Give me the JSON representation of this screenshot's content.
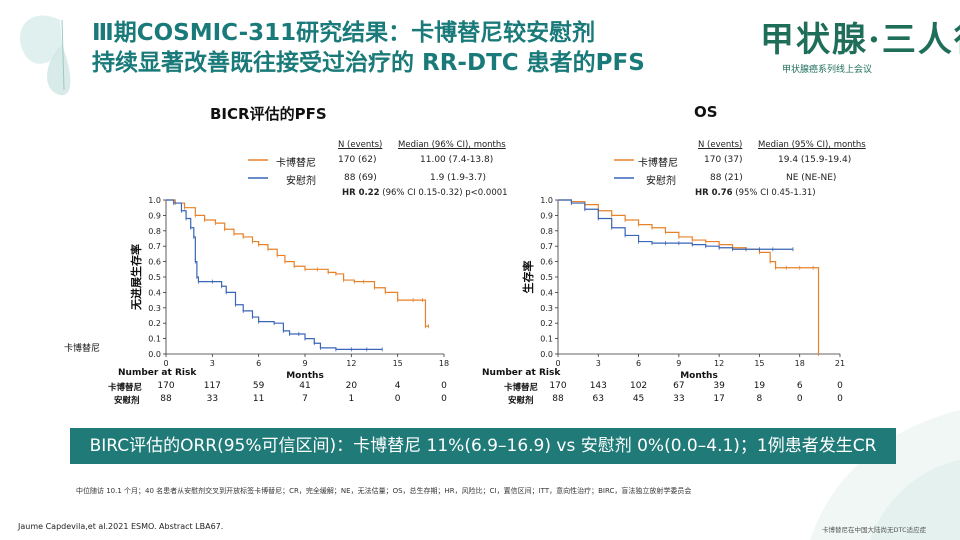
{
  "header": {
    "title_line1": "Ⅲ期COSMIC-311研究结果：卡博替尼较安慰剂",
    "title_line2": "持续显著改善既往接受过治疗的 RR-DTC 患者的PFS"
  },
  "logo": {
    "text": "甲状腺·三人行",
    "subtitle": "甲状腺癌系列线上会议"
  },
  "colors": {
    "cabozantinib": "#e8822a",
    "placebo": "#3a66b8",
    "banner": "#1f7a78",
    "title": "#1a7a7a"
  },
  "left_panel": {
    "side_label": "卡博替尼",
    "legend": {
      "col1": "N (events)",
      "col2": "Median (96% CI), months",
      "rows": [
        {
          "name": "卡博替尼",
          "n": "170 (62)",
          "median": "11.00 (7.4-13.8)"
        },
        {
          "name": "安慰剂",
          "n": "88 (69)",
          "median": "1.9 (1.9-3.7)"
        }
      ],
      "hr_bold": "HR 0.22",
      "hr_rest": " (96% CI 0.15-0.32) p<0.0001"
    },
    "risk": {
      "title": "Number at Risk",
      "rows": [
        {
          "label": "卡博替尼",
          "values": [
            "170",
            "117",
            "59",
            "41",
            "20",
            "4",
            "0"
          ]
        },
        {
          "label": "安慰剂",
          "values": [
            "88",
            "33",
            "11",
            "7",
            "1",
            "0",
            "0"
          ]
        }
      ]
    }
  },
  "right_panel": {
    "legend": {
      "col1": "N (events)",
      "col2": "Median (95% CI), months",
      "rows": [
        {
          "name": "卡博替尼",
          "n": "170 (37)",
          "median": "19.4 (15.9-19.4)"
        },
        {
          "name": "安慰剂",
          "n": "88 (21)",
          "median": "NE (NE-NE)"
        }
      ],
      "hr_bold": "HR 0.76",
      "hr_rest": " (95% CI 0.45-1.31)"
    },
    "risk": {
      "title": "Number at Risk",
      "rows": [
        {
          "label": "卡博替尼",
          "values": [
            "170",
            "143",
            "102",
            "67",
            "39",
            "19",
            "6",
            "0"
          ]
        },
        {
          "label": "安慰剂",
          "values": [
            "88",
            "63",
            "45",
            "33",
            "17",
            "8",
            "0",
            "0"
          ]
        }
      ]
    }
  },
  "chart_data": [
    {
      "type": "line",
      "title": "BICR评估的PFS",
      "xlabel": "Months",
      "ylabel": "无进展生存率",
      "xlim": [
        0,
        18
      ],
      "ylim": [
        0,
        1.0
      ],
      "xticks": [
        0,
        3,
        6,
        9,
        12,
        15,
        18
      ],
      "yticks": [
        0.0,
        0.1,
        0.2,
        0.3,
        0.4,
        0.5,
        0.6,
        0.7,
        0.8,
        0.9,
        1.0
      ],
      "series": [
        {
          "name": "卡博替尼",
          "x": [
            0,
            0.6,
            1.2,
            1.9,
            2.5,
            3.2,
            3.8,
            4.4,
            5.0,
            5.6,
            6.0,
            6.6,
            7.2,
            7.7,
            8.3,
            9.0,
            9.8,
            10.5,
            11.0,
            11.5,
            12.2,
            12.8,
            13.5,
            14.2,
            15.0,
            16.0,
            16.6,
            16.8,
            17.0
          ],
          "y": [
            1.0,
            0.98,
            0.95,
            0.9,
            0.87,
            0.85,
            0.81,
            0.78,
            0.76,
            0.73,
            0.71,
            0.68,
            0.64,
            0.6,
            0.57,
            0.55,
            0.55,
            0.53,
            0.52,
            0.48,
            0.47,
            0.47,
            0.43,
            0.4,
            0.35,
            0.35,
            0.35,
            0.18,
            0.18
          ]
        },
        {
          "name": "安慰剂",
          "x": [
            0,
            0.5,
            1.0,
            1.3,
            1.6,
            1.8,
            1.9,
            2.0,
            2.1,
            3.0,
            3.6,
            3.9,
            4.5,
            5.0,
            5.6,
            6.0,
            7.0,
            7.6,
            8.0,
            8.6,
            9.0,
            9.6,
            10.0,
            11.0,
            12.0,
            13.0,
            14.0
          ],
          "y": [
            1.0,
            0.98,
            0.93,
            0.88,
            0.82,
            0.76,
            0.6,
            0.5,
            0.47,
            0.47,
            0.44,
            0.4,
            0.32,
            0.28,
            0.24,
            0.21,
            0.2,
            0.15,
            0.13,
            0.13,
            0.1,
            0.07,
            0.04,
            0.03,
            0.03,
            0.03,
            0.03
          ]
        }
      ]
    },
    {
      "type": "line",
      "title": "OS",
      "xlabel": "Months",
      "ylabel": "生存率",
      "xlim": [
        0,
        21
      ],
      "ylim": [
        0,
        1.0
      ],
      "xticks": [
        0,
        3,
        6,
        9,
        12,
        15,
        18,
        21
      ],
      "yticks": [
        0.0,
        0.1,
        0.2,
        0.3,
        0.4,
        0.5,
        0.6,
        0.7,
        0.8,
        0.9,
        1.0
      ],
      "series": [
        {
          "name": "卡博替尼",
          "x": [
            0,
            1,
            2,
            3,
            4,
            5,
            6,
            7,
            8,
            9,
            10,
            11,
            12,
            13,
            14,
            15,
            15.8,
            16.2,
            17,
            18,
            19.0,
            19.4
          ],
          "y": [
            1.0,
            0.99,
            0.97,
            0.93,
            0.9,
            0.87,
            0.84,
            0.82,
            0.79,
            0.76,
            0.74,
            0.73,
            0.71,
            0.69,
            0.68,
            0.66,
            0.6,
            0.56,
            0.56,
            0.56,
            0.56,
            0.0
          ]
        },
        {
          "name": "安慰剂",
          "x": [
            0,
            1,
            2,
            3,
            4,
            5,
            6,
            7,
            8,
            9,
            10,
            11,
            12,
            13,
            14,
            15,
            16,
            17.5
          ],
          "y": [
            1.0,
            0.98,
            0.94,
            0.88,
            0.82,
            0.77,
            0.73,
            0.72,
            0.72,
            0.72,
            0.71,
            0.7,
            0.69,
            0.68,
            0.68,
            0.68,
            0.68,
            0.68
          ]
        }
      ]
    }
  ],
  "banner_text": "BIRC评估的ORR(95%可信区间)：卡博替尼 11%(6.9–16.9) vs 安慰剂 0%(0.0–4.1)；1例患者发生CR",
  "footnote": "中位随访 10.1 个月；40 名患者从安慰剂交叉到开放标签卡博替尼；CR，完全缓解；NE，无法估量；OS，总生存期；HR，风险比；CI，置信区间；ITT，意向性治疗；BIRC，盲法独立放射学委员会",
  "citation": "Jaume Capdevila,et al.2021 ESMO. Abstract LBA67.",
  "bottom_note": "卡博替尼在中国大陆尚无DTC适应症"
}
